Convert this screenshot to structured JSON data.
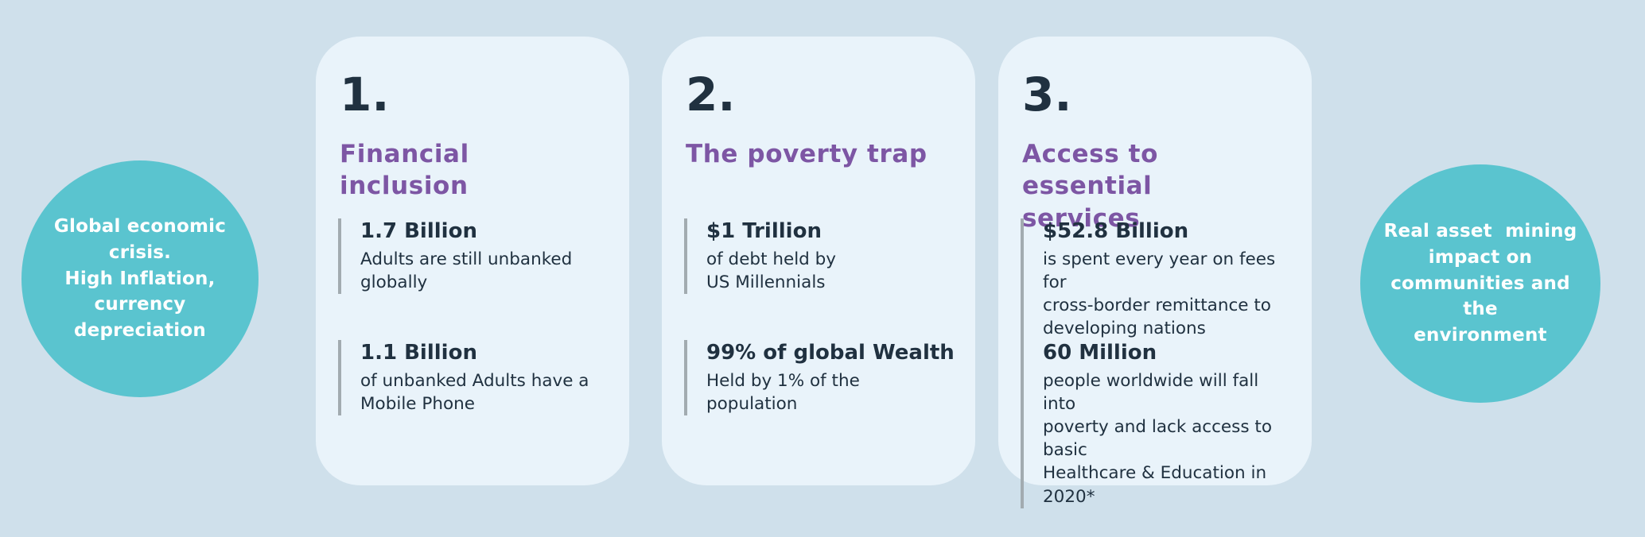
{
  "colors": {
    "background": "#cfe0eb",
    "card_background": "#e9f3fa",
    "circle_teal": "#5ac4cf",
    "heading_purple": "#7d56a4",
    "text_dark": "#203140",
    "stat_bar_gray": "#a2abb0",
    "circle_text_white": "#ffffff"
  },
  "left_circle": {
    "text": "Global economic\ncrisis.\nHigh Inflation,\ncurrency\ndepreciation"
  },
  "right_circle": {
    "text": "Real asset  mining\nimpact on\ncommunities and the\nenvironment"
  },
  "cards": [
    {
      "number": "1.",
      "title": "Financial inclusion",
      "stats": [
        {
          "value": "1.7 Billion",
          "description": "Adults are still unbanked\nglobally"
        },
        {
          "value": "1.1 Billion",
          "description": "of unbanked Adults have a\nMobile Phone"
        }
      ]
    },
    {
      "number": "2.",
      "title": "The poverty trap",
      "stats": [
        {
          "value": "$1 Trillion",
          "description": "of debt held by\nUS Millennials"
        },
        {
          "value": "99% of global Wealth",
          "description": "Held by 1% of the\npopulation"
        }
      ]
    },
    {
      "number": "3.",
      "title": "Access to essential\nservices",
      "stats": [
        {
          "value": "$52.8 Billion",
          "description": "is spent every year on fees for\ncross-border remittance to\ndeveloping nations"
        },
        {
          "value": "60 Million",
          "description": "people worldwide will fall into\npoverty and lack access to basic\nHealthcare & Education in 2020*"
        }
      ]
    }
  ]
}
